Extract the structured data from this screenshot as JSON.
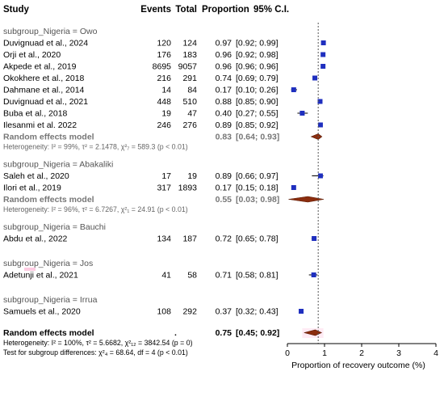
{
  "header": {
    "study": "Study",
    "events": "Events",
    "total": "Total",
    "proportion": "Proportion",
    "ci": "95% C.I."
  },
  "chart_data": {
    "type": "forest",
    "subgroups": [
      {
        "label": "subgroup_Nigeria = Owo",
        "studies": [
          {
            "study": "Duvignuad et al., 2024",
            "events": "120",
            "total": "124",
            "prop": "0.97",
            "ci": "[0.92; 0.99]",
            "est": 0.97,
            "lo": 0.92,
            "hi": 0.99
          },
          {
            "study": "Orji et al., 2020",
            "events": "176",
            "total": "183",
            "prop": "0.96",
            "ci": "[0.92; 0.98]",
            "est": 0.96,
            "lo": 0.92,
            "hi": 0.98
          },
          {
            "study": "Akpede et al., 2019",
            "events": "8695",
            "total": "9057",
            "prop": "0.96",
            "ci": "[0.96; 0.96]",
            "est": 0.96,
            "lo": 0.96,
            "hi": 0.96
          },
          {
            "study": "Okokhere et al., 2018",
            "events": "216",
            "total": "291",
            "prop": "0.74",
            "ci": "[0.69; 0.79]",
            "est": 0.74,
            "lo": 0.69,
            "hi": 0.79
          },
          {
            "study": "Dahmane et al., 2014",
            "events": "14",
            "total": "84",
            "prop": "0.17",
            "ci": "[0.10; 0.26]",
            "est": 0.17,
            "lo": 0.1,
            "hi": 0.26
          },
          {
            "study": "Duvignuad et al., 2021",
            "events": "448",
            "total": "510",
            "prop": "0.88",
            "ci": "[0.85; 0.90]",
            "est": 0.88,
            "lo": 0.85,
            "hi": 0.9
          },
          {
            "study": "Buba et al., 2018",
            "events": "19",
            "total": "47",
            "prop": "0.40",
            "ci": "[0.27; 0.55]",
            "est": 0.4,
            "lo": 0.27,
            "hi": 0.55
          },
          {
            "study": "Ilesanmi et al. 2022",
            "events": "246",
            "total": "276",
            "prop": "0.89",
            "ci": "[0.85; 0.92]",
            "est": 0.89,
            "lo": 0.85,
            "hi": 0.92
          }
        ],
        "pooled": {
          "label": "Random effects model",
          "prop": "0.83",
          "ci": "[0.64; 0.93]",
          "est": 0.83,
          "lo": 0.64,
          "hi": 0.93
        },
        "heterogeneity": "Heterogeneity: I² = 99%, τ² = 2.1478, χ²₇ = 589.3 (p < 0.01)"
      },
      {
        "label": "subgroup_Nigeria = Abakaliki",
        "studies": [
          {
            "study": "Saleh et al., 2020",
            "events": "17",
            "total": "19",
            "prop": "0.89",
            "ci": "[0.66; 0.97]",
            "est": 0.89,
            "lo": 0.66,
            "hi": 0.97
          },
          {
            "study": "Ilori et al., 2019",
            "events": "317",
            "total": "1893",
            "prop": "0.17",
            "ci": "[0.15; 0.18]",
            "est": 0.17,
            "lo": 0.15,
            "hi": 0.18
          }
        ],
        "pooled": {
          "label": "Random effects model",
          "prop": "0.55",
          "ci": "[0.03; 0.98]",
          "est": 0.55,
          "lo": 0.03,
          "hi": 0.98
        },
        "heterogeneity": "Heterogeneity: I² = 96%, τ² = 6.7267, χ²₁ = 24.91 (p < 0.01)"
      },
      {
        "label": "subgroup_Nigeria = Bauchi",
        "studies": [
          {
            "study": "Abdu et al., 2022",
            "events": "134",
            "total": "187",
            "prop": "0.72",
            "ci": "[0.65; 0.78]",
            "est": 0.72,
            "lo": 0.65,
            "hi": 0.78
          }
        ]
      },
      {
        "label": "subgroup_Nigeria = Jos",
        "studies": [
          {
            "study": "Adetunji et al., 2021",
            "events": "41",
            "total": "58",
            "prop": "0.71",
            "ci": "[0.58; 0.81]",
            "est": 0.71,
            "lo": 0.58,
            "hi": 0.81
          }
        ]
      },
      {
        "label": "subgroup_Nigeria = Irrua",
        "studies": [
          {
            "study": "Samuels et al., 2020",
            "events": "108",
            "total": "292",
            "prop": "0.37",
            "ci": "[0.32; 0.43]",
            "est": 0.37,
            "lo": 0.32,
            "hi": 0.43
          }
        ]
      }
    ],
    "overall": {
      "label": "Random effects model",
      "dot": ".",
      "prop": "0.75",
      "ci": "[0.45; 0.92]",
      "est": 0.75,
      "lo": 0.45,
      "hi": 0.92
    },
    "overall_heterogeneity": "Heterogeneity: I² = 100%, τ² = 5.6682, χ²₁₂ = 3842.54 (p = 0)",
    "subgroup_test": "Test for subgroup differences: χ²₄ = 68.64, df = 4 (p < 0.01)",
    "x_axis": {
      "label": "Proportion of recovery outcome (%)",
      "ticks": [
        0,
        1,
        2,
        3,
        4
      ],
      "range": [
        0,
        4
      ],
      "reference_line": 0.83
    },
    "colors": {
      "square": "#1f2fbf",
      "diamond": "#8b2d0e",
      "pooled_text": "#777777",
      "subgroup_text": "#555555",
      "highlight": "#ffc6e0"
    }
  }
}
